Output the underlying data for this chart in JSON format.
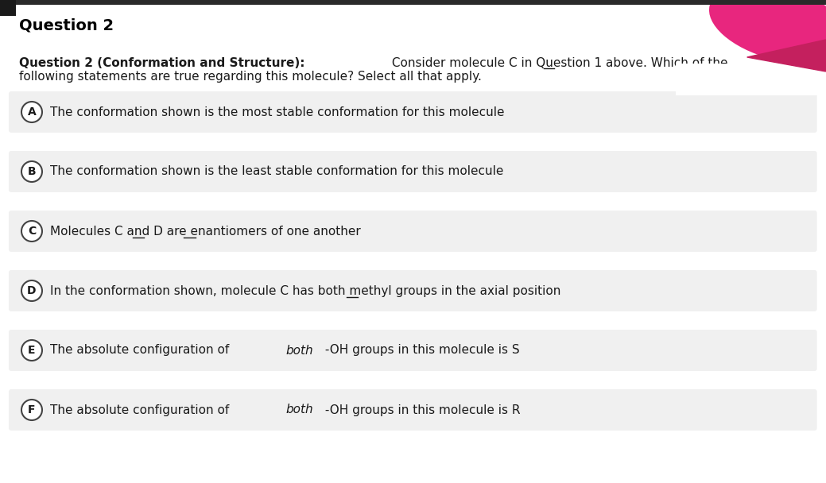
{
  "title": "Question 2",
  "question_bold": "Question 2 (Conformation and Structure):",
  "question_normal": " Consider molecule C in Question 1 above. Which of the",
  "question_line2": "following statements are true regarding this molecule? Select all that apply.",
  "options": [
    {
      "letter": "A",
      "parts": [
        {
          "text": "The conformation shown is the most stable conformation for this molecule",
          "style": "normal"
        }
      ]
    },
    {
      "letter": "B",
      "parts": [
        {
          "text": "The conformation shown is the least stable conformation for this molecule",
          "style": "normal"
        }
      ]
    },
    {
      "letter": "C",
      "parts": [
        {
          "text": "Molecules C and D are enantiomers of one another",
          "style": "normal"
        }
      ],
      "underline_indices": [
        {
          "start": 10,
          "end": 11
        },
        {
          "start": 16,
          "end": 17
        }
      ]
    },
    {
      "letter": "D",
      "parts": [
        {
          "text": "In the conformation shown, molecule C has both methyl groups in the axial position",
          "style": "normal"
        }
      ],
      "underline_indices": [
        {
          "start": 36,
          "end": 37
        }
      ]
    },
    {
      "letter": "E",
      "parts": [
        {
          "text": "The absolute configuration of ",
          "style": "normal"
        },
        {
          "text": "both",
          "style": "italic"
        },
        {
          "text": " -OH groups in this molecule is S",
          "style": "normal"
        }
      ]
    },
    {
      "letter": "F",
      "parts": [
        {
          "text": "The absolute configuration of ",
          "style": "normal"
        },
        {
          "text": "both",
          "style": "italic"
        },
        {
          "text": " -OH groups in this molecule is R",
          "style": "normal"
        }
      ]
    }
  ],
  "bg_color": "#ffffff",
  "option_bg_color": "#f0f0f0",
  "title_color": "#000000",
  "text_color": "#1a1a1a",
  "circle_edge_color": "#444444",
  "pink_color": "#e8267e",
  "font_size_title": 14,
  "font_size_question": 11,
  "font_size_option": 11
}
